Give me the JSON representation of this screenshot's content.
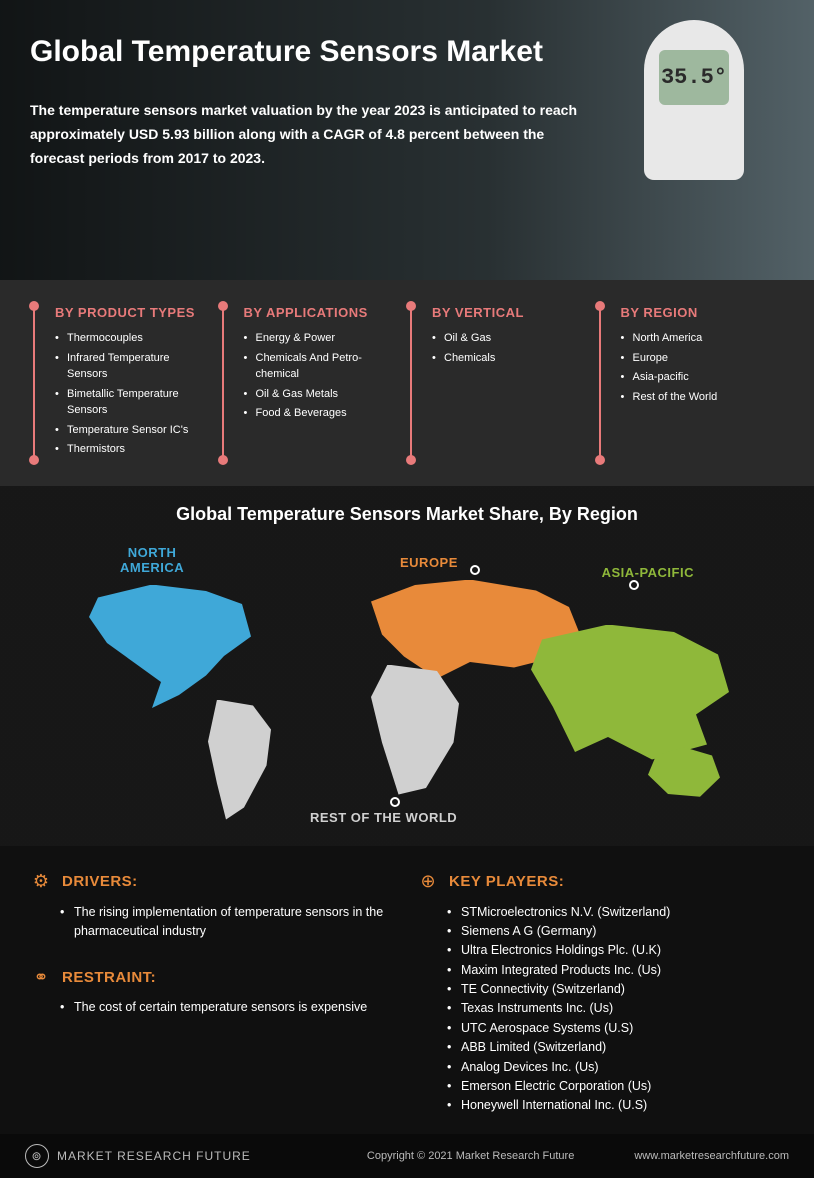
{
  "hero": {
    "title": "Global Temperature Sensors Market",
    "subtitle": "The temperature sensors market valuation by the year 2023 is anticipated to reach approximately USD 5.93 billion along with a CAGR of 4.8 percent between the forecast periods from 2017 to 2023.",
    "device_reading": "35.5°"
  },
  "segments": {
    "accent_color": "#e87a7a",
    "columns": [
      {
        "heading": "BY PRODUCT TYPES",
        "items": [
          "Thermocouples",
          "Infrared Temperature Sensors",
          "Bimetallic Temperature Sensors",
          "Temperature Sensor IC's",
          "Thermistors"
        ]
      },
      {
        "heading": "BY APPLICATIONS",
        "items": [
          "Energy & Power",
          "Chemicals And Petro-chemical",
          "Oil & Gas Metals",
          "Food & Beverages"
        ]
      },
      {
        "heading": "BY VERTICAL",
        "items": [
          "Oil & Gas",
          "Chemicals"
        ]
      },
      {
        "heading": "BY REGION",
        "items": [
          "North America",
          "Europe",
          "Asia-pacific",
          "Rest of the World"
        ]
      }
    ]
  },
  "map": {
    "title": "Global Temperature Sensors Market Share, By Region",
    "regions": {
      "na": {
        "label": "NORTH\nAMERICA",
        "color": "#3fa8d8"
      },
      "eu": {
        "label": "EUROPE",
        "color": "#e88a3a"
      },
      "ap": {
        "label": "ASIA-PACIFIC",
        "color": "#8fb83a"
      },
      "rw": {
        "label": "REST OF THE WORLD",
        "color": "#d0d0d0"
      }
    }
  },
  "bottom": {
    "header_color": "#e88a3a",
    "drivers": {
      "heading": "DRIVERS:",
      "items": [
        "The rising implementation of temperature sensors in the pharmaceutical industry"
      ]
    },
    "restraint": {
      "heading": "RESTRAINT:",
      "items": [
        "The cost of certain temperature sensors is expensive"
      ]
    },
    "key_players": {
      "heading": "KEY PLAYERS:",
      "items": [
        "STMicroelectronics N.V. (Switzerland)",
        "Siemens A G (Germany)",
        "Ultra Electronics Holdings Plc. (U.K)",
        "Maxim Integrated Products Inc. (Us)",
        "TE Connectivity (Switzerland)",
        "Texas Instruments Inc. (Us)",
        "UTC Aerospace Systems (U.S)",
        "ABB Limited (Switzerland)",
        "Analog Devices Inc. (Us)",
        "Emerson Electric Corporation (Us)",
        "Honeywell International Inc. (U.S)"
      ]
    }
  },
  "footer": {
    "brand": "MARKET RESEARCH FUTURE",
    "copyright": "Copyright © 2021 Market Research Future",
    "url": "www.marketresearchfuture.com"
  }
}
